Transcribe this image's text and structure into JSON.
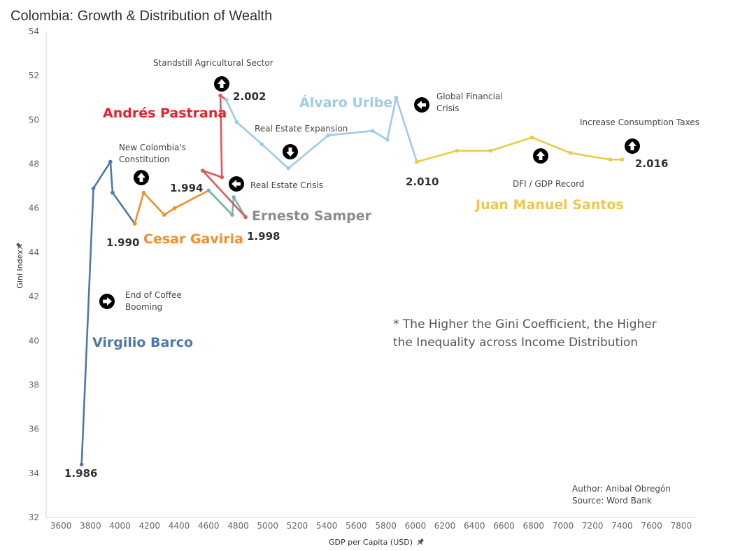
{
  "title": "Colombia: Growth & Distribution of Wealth",
  "chart_data": {
    "type": "line",
    "title": "Colombia: Growth & Distribution of Wealth",
    "xlabel": "GDP per Capita (USD)",
    "ylabel": "Gini Index",
    "xlim": [
      3500,
      7900
    ],
    "ylim": [
      32,
      54
    ],
    "x_ticks": [
      3600,
      3800,
      4000,
      4200,
      4400,
      4600,
      4800,
      5000,
      5200,
      5400,
      5600,
      5800,
      6000,
      6200,
      6400,
      6600,
      6800,
      7000,
      7200,
      7400,
      7600,
      7800
    ],
    "y_ticks": [
      32,
      34,
      36,
      38,
      40,
      42,
      44,
      46,
      48,
      50,
      52,
      54
    ],
    "grid": false,
    "series": [
      {
        "name": "Virgilio Barco",
        "color": "#4e79a7",
        "points": [
          [
            3740,
            34.4
          ],
          [
            3820,
            46.9
          ],
          [
            3935,
            48.1
          ],
          [
            3950,
            46.7
          ],
          [
            4100,
            45.3
          ]
        ]
      },
      {
        "name": "Cesar Gaviria",
        "color": "#f28e2b",
        "points": [
          [
            4100,
            45.3
          ],
          [
            4160,
            46.7
          ],
          [
            4300,
            45.7
          ],
          [
            4370,
            46.0
          ],
          [
            4600,
            46.8
          ],
          [
            4760,
            45.7
          ]
        ]
      },
      {
        "name": "Ernesto Samper",
        "color": "#76b7b2",
        "points": [
          [
            4600,
            46.8
          ],
          [
            4760,
            45.7
          ],
          [
            4770,
            46.5
          ],
          [
            4850,
            45.6
          ]
        ]
      },
      {
        "name": "Andrés Pastrana",
        "color": "#e15759",
        "points": [
          [
            4850,
            45.6
          ],
          [
            4560,
            47.7
          ],
          [
            4690,
            47.4
          ],
          [
            4680,
            51.1
          ],
          [
            4720,
            50.9
          ]
        ]
      },
      {
        "name": "Álvaro Uribe",
        "color": "#a0cbe8",
        "points": [
          [
            4720,
            50.9
          ],
          [
            4790,
            49.9
          ],
          [
            4960,
            48.9
          ],
          [
            5140,
            47.8
          ],
          [
            5410,
            49.3
          ],
          [
            5710,
            49.5
          ],
          [
            5810,
            49.1
          ],
          [
            5870,
            51.0
          ],
          [
            6010,
            48.1
          ]
        ]
      },
      {
        "name": "Juan Manuel Santos",
        "color": "#edc948",
        "points": [
          [
            6010,
            48.1
          ],
          [
            6280,
            48.6
          ],
          [
            6510,
            48.6
          ],
          [
            6790,
            49.2
          ],
          [
            7050,
            48.5
          ],
          [
            7320,
            48.2
          ],
          [
            7400,
            48.2
          ]
        ]
      }
    ],
    "year_labels": [
      "1.986",
      "1.990",
      "1.994",
      "1.998",
      "2.002",
      "2.010",
      "2.016"
    ],
    "annotations": [
      "Standstill Agricultural Sector",
      "New Colombia's Constitution",
      "End of Coffee Booming",
      "Real Estate Expansion",
      "Real Estate Crisis",
      "Global Financial Crisis",
      "DFI / GDP Record",
      "Increase Consumption Taxes"
    ]
  },
  "labels": {
    "year_1986": "1.986",
    "year_1990": "1.990",
    "year_1994": "1.994",
    "year_1998": "1.998",
    "year_2002": "2.002",
    "year_2010": "2.010",
    "year_2016": "2.016",
    "pres_barco": "Virgilio Barco",
    "pres_gaviria": "Cesar Gaviria",
    "pres_samper": "Ernesto Samper",
    "pres_pastrana": "Andrés Pastrana",
    "pres_uribe": "Álvaro Uribe",
    "pres_santos": "Juan Manuel Santos",
    "ann_standstill": "Standstill Agricultural Sector",
    "ann_constitution_1": "New Colombia's",
    "ann_constitution_2": "Constitution",
    "ann_coffee_1": "End of Coffee",
    "ann_coffee_2": "Booming",
    "ann_expansion": "Real Estate Expansion",
    "ann_crisis": "Real Estate Crisis",
    "ann_global_1": "Global Financial",
    "ann_global_2": "Crisis",
    "ann_dfi": "DFI / GDP Record",
    "ann_taxes": "Increase Consumption Taxes",
    "note_1": "* The Higher the Gini Coefficient, the Higher",
    "note_2": "the Inequality across Income Distribution",
    "author": "Author: Anibal Obregón",
    "source": "Source: Word Bank"
  }
}
